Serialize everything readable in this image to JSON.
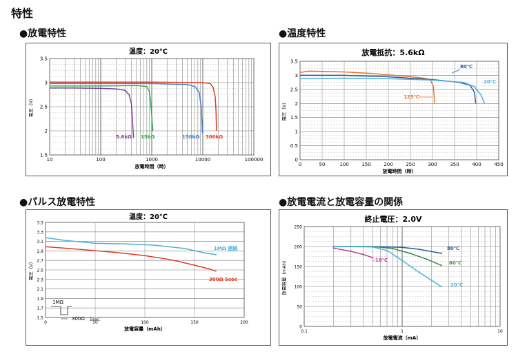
{
  "page": {
    "heading": "特性"
  },
  "chart_data": [
    {
      "id": "discharge",
      "section": "●放電特性",
      "type": "line",
      "title": "温度：20℃",
      "xlabel": "放電時間（時）",
      "ylabel": "電圧（V）",
      "xscale": "log",
      "xlim": [
        10,
        100000
      ],
      "ylim": [
        1.5,
        3.5
      ],
      "x_ticks": [
        "10",
        "100",
        "1000",
        "10000",
        "100000"
      ],
      "y_ticks": [
        "1.5",
        "2",
        "2.5",
        "3",
        "3.5"
      ],
      "grid": true,
      "series": [
        {
          "name": "5.6kΩ",
          "color": "#7a3fa0",
          "points": [
            [
              10,
              2.89
            ],
            [
              30,
              2.89
            ],
            [
              100,
              2.88
            ],
            [
              200,
              2.87
            ],
            [
              300,
              2.84
            ],
            [
              360,
              2.75
            ],
            [
              400,
              2.55
            ],
            [
              420,
              2.2
            ],
            [
              440,
              1.85
            ]
          ]
        },
        {
          "name": "15kΩ",
          "color": "#3aa84a",
          "points": [
            [
              10,
              2.93
            ],
            [
              100,
              2.93
            ],
            [
              500,
              2.94
            ],
            [
              800,
              2.92
            ],
            [
              900,
              2.82
            ],
            [
              950,
              2.6
            ],
            [
              1000,
              2.3
            ],
            [
              1050,
              2.0
            ]
          ]
        },
        {
          "name": "150kΩ",
          "color": "#3a7fd0",
          "points": [
            [
              10,
              2.98
            ],
            [
              100,
              2.98
            ],
            [
              1000,
              2.98
            ],
            [
              5000,
              2.96
            ],
            [
              7000,
              2.92
            ],
            [
              8500,
              2.8
            ],
            [
              9300,
              2.5
            ],
            [
              9600,
              2.2
            ],
            [
              9800,
              1.95
            ]
          ]
        },
        {
          "name": "300kΩ",
          "color": "#e03a22",
          "points": [
            [
              10,
              3.01
            ],
            [
              1000,
              3.01
            ],
            [
              10000,
              3.0
            ],
            [
              14000,
              2.98
            ],
            [
              16000,
              2.9
            ],
            [
              17500,
              2.7
            ],
            [
              18200,
              2.4
            ],
            [
              18600,
              2.0
            ]
          ]
        }
      ]
    },
    {
      "id": "temperature",
      "section": "●温度特性",
      "type": "line",
      "title": "放電抵抗：5.6kΩ",
      "xlabel": "放電時間（時）",
      "ylabel": "電圧（V）",
      "xlim": [
        0,
        450
      ],
      "ylim": [
        0,
        3.5
      ],
      "x_ticks": [
        "0",
        "50",
        "100",
        "150",
        "200",
        "250",
        "300",
        "350",
        "400",
        "450"
      ],
      "y_ticks": [
        "0",
        "0.5",
        "1",
        "1.5",
        "2",
        "2.5",
        "3",
        "3.5"
      ],
      "grid": true,
      "series": [
        {
          "name": "125℃",
          "color": "#e8742a",
          "points": [
            [
              0,
              3.1
            ],
            [
              20,
              3.15
            ],
            [
              100,
              3.12
            ],
            [
              160,
              3.07
            ],
            [
              240,
              2.97
            ],
            [
              280,
              2.9
            ],
            [
              295,
              2.85
            ],
            [
              302,
              2.6
            ],
            [
              305,
              2.0
            ]
          ]
        },
        {
          "name": "80℃",
          "color": "#2a5a9e",
          "points": [
            [
              0,
              3.0
            ],
            [
              100,
              3.0
            ],
            [
              200,
              2.95
            ],
            [
              300,
              2.85
            ],
            [
              360,
              2.75
            ],
            [
              385,
              2.65
            ],
            [
              395,
              2.4
            ],
            [
              398,
              2.0
            ]
          ]
        },
        {
          "name": "20℃",
          "color": "#4ab0e0",
          "points": [
            [
              0,
              2.88
            ],
            [
              100,
              2.9
            ],
            [
              200,
              2.88
            ],
            [
              300,
              2.83
            ],
            [
              370,
              2.75
            ],
            [
              395,
              2.6
            ],
            [
              410,
              2.3
            ],
            [
              418,
              2.0
            ]
          ]
        }
      ]
    },
    {
      "id": "pulse",
      "section": "●パルス放電特性",
      "type": "line",
      "title": "温度：20℃",
      "xlabel": "放電容量（mAh）",
      "ylabel": "電圧（V）",
      "xlim": [
        0,
        200
      ],
      "ylim": [
        1.5,
        3.5
      ],
      "x_ticks": [
        "0",
        "50",
        "100",
        "150",
        "200"
      ],
      "y_ticks": [
        "1.5",
        "1.7",
        "1.9",
        "2.1",
        "2.3",
        "2.5",
        "2.7",
        "2.9",
        "3.1",
        "3.3",
        "3.5"
      ],
      "grid": true,
      "series": [
        {
          "name": "1MΩ 連続",
          "color": "#4ab0d8",
          "points": [
            [
              0,
              3.18
            ],
            [
              20,
              3.12
            ],
            [
              50,
              3.06
            ],
            [
              80,
              3.05
            ],
            [
              110,
              3.02
            ],
            [
              140,
              2.95
            ],
            [
              160,
              2.86
            ],
            [
              172,
              2.82
            ]
          ]
        },
        {
          "name": "300Ω 5sec",
          "color": "#e03a22",
          "points": [
            [
              0,
              2.99
            ],
            [
              30,
              2.94
            ],
            [
              70,
              2.87
            ],
            [
              100,
              2.8
            ],
            [
              125,
              2.72
            ],
            [
              150,
              2.6
            ],
            [
              165,
              2.52
            ],
            [
              172,
              2.47
            ]
          ]
        }
      ],
      "inset": {
        "top_label": "1MΩ",
        "bottom_label": "300Ω",
        "duration_label": "5sec."
      }
    },
    {
      "id": "capacity",
      "section": "●放電電流と放電容量の関係",
      "type": "line",
      "title": "終止電圧：2.0V",
      "xlabel": "放電電流（mA）",
      "ylabel": "放電容量（mAh）",
      "xscale": "log",
      "xlim": [
        0.1,
        10
      ],
      "ylim": [
        0,
        250
      ],
      "x_ticks": [
        "0.1",
        "1",
        "10"
      ],
      "y_ticks": [
        "0",
        "50",
        "100",
        "150",
        "200",
        "250"
      ],
      "grid": true,
      "series": [
        {
          "name": "80℃",
          "color": "#2a5a9e",
          "points": [
            [
              0.2,
              200
            ],
            [
              0.5,
              200
            ],
            [
              1,
              198
            ],
            [
              1.5,
              193
            ],
            [
              2.5,
              183
            ]
          ]
        },
        {
          "name": "60℃",
          "color": "#3a8a4a",
          "points": [
            [
              0.2,
              200
            ],
            [
              0.5,
              200
            ],
            [
              0.8,
              195
            ],
            [
              1.2,
              183
            ],
            [
              1.8,
              168
            ],
            [
              2.5,
              153
            ]
          ]
        },
        {
          "name": "20℃",
          "color": "#4ab0e0",
          "points": [
            [
              0.2,
              200
            ],
            [
              0.5,
              199
            ],
            [
              0.7,
              190
            ],
            [
              1,
              165
            ],
            [
              1.5,
              135
            ],
            [
              2,
              115
            ],
            [
              2.5,
              100
            ]
          ]
        },
        {
          "name": "-10℃",
          "color": "#c83a8a",
          "points": [
            [
              0.2,
              196
            ],
            [
              0.3,
              188
            ],
            [
              0.4,
              180
            ],
            [
              0.5,
              172
            ]
          ]
        }
      ]
    }
  ]
}
